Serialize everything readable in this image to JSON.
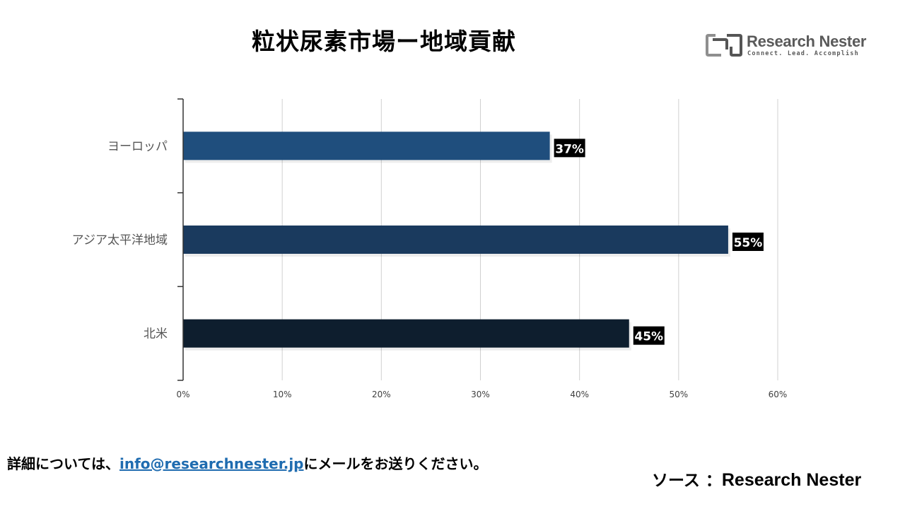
{
  "header": {
    "title": "粒状尿素市場ー地域貢献"
  },
  "logo": {
    "name": "Research Nester",
    "tagline": "Connect. Lead. Accomplish",
    "colors": {
      "dark": "#555555",
      "accent": "#9a9a9a"
    }
  },
  "chart_data": {
    "type": "bar",
    "orientation": "horizontal",
    "title": "粒状尿素市場ー地域貢献",
    "categories": [
      "ヨーロッパ",
      "アジア太平洋地域",
      "北米"
    ],
    "values": [
      37,
      55,
      45
    ],
    "data_labels": [
      "37%",
      "55%",
      "45%"
    ],
    "bar_colors": [
      "#1f4e7d",
      "#1a3a5e",
      "#0e1e2e"
    ],
    "xlim": [
      0,
      60
    ],
    "xticks": [
      0,
      10,
      20,
      30,
      40,
      50,
      60
    ],
    "xtick_labels": [
      "0%",
      "10%",
      "20%",
      "30%",
      "40%",
      "50%",
      "60%"
    ],
    "xlabel": "",
    "ylabel": "",
    "grid": true,
    "legend": "none"
  },
  "footer": {
    "contact_prefix": "詳細については、",
    "email": "info@researchnester.jp",
    "contact_suffix": "にメールをお送りください。",
    "source_label": "ソース ：",
    "source_name": "Research Nester"
  }
}
